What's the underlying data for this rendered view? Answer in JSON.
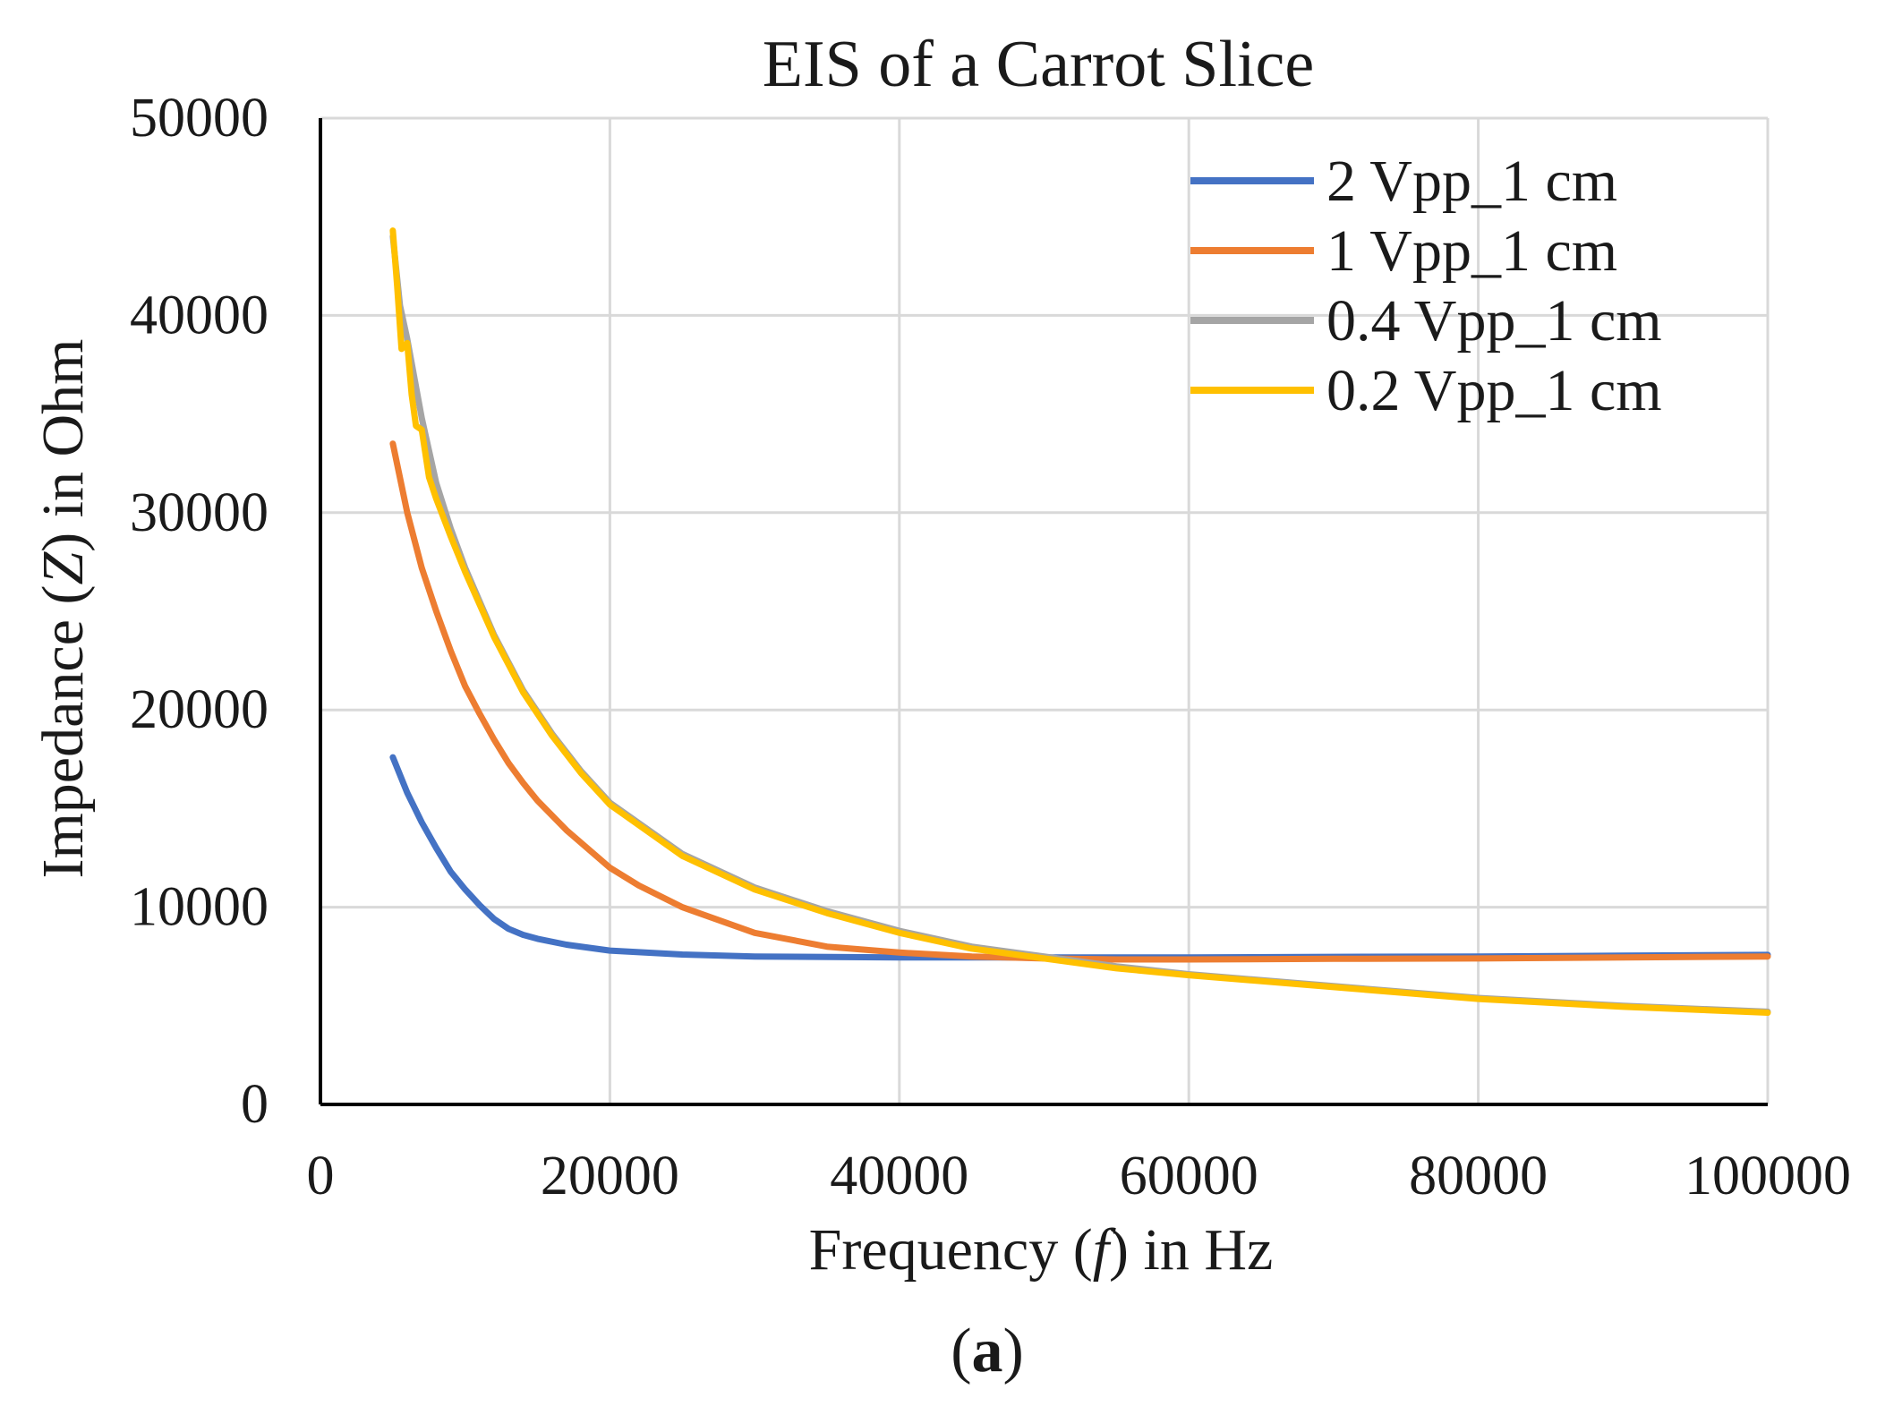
{
  "chart_data": {
    "type": "line",
    "title": "EIS of a Carrot Slice",
    "xlabel_parts": [
      "Frequency (",
      "f",
      ") in Hz"
    ],
    "ylabel_parts": [
      "Impedance (",
      "Z",
      ") in Ohm"
    ],
    "panel_label_parts": [
      "(",
      "a",
      ")"
    ],
    "xlim": [
      0,
      100000
    ],
    "ylim": [
      0,
      50000
    ],
    "x_ticks": [
      0,
      20000,
      40000,
      60000,
      80000,
      100000
    ],
    "x_tick_labels": [
      "0",
      "20000",
      "40000",
      "60000",
      "80000",
      "100000"
    ],
    "y_ticks": [
      0,
      10000,
      20000,
      30000,
      40000,
      50000
    ],
    "y_tick_labels": [
      "0",
      "10000",
      "20000",
      "30000",
      "40000",
      "50000"
    ],
    "grid": true,
    "legend_position": "top-right",
    "series": [
      {
        "name": "2 Vpp_1 cm",
        "color": "#4472c4",
        "x": [
          5000,
          6000,
          7000,
          8000,
          9000,
          10000,
          11000,
          12000,
          13000,
          14000,
          15000,
          17000,
          20000,
          25000,
          30000,
          40000,
          50000,
          60000,
          70000,
          80000,
          90000,
          100000
        ],
        "y": [
          17600,
          15800,
          14300,
          13000,
          11800,
          10900,
          10100,
          9400,
          8900,
          8600,
          8400,
          8100,
          7800,
          7600,
          7500,
          7450,
          7450,
          7450,
          7480,
          7500,
          7540,
          7580
        ]
      },
      {
        "name": "1 Vpp_1 cm",
        "color": "#ed7d31",
        "x": [
          5000,
          6000,
          7000,
          8000,
          9000,
          10000,
          11000,
          12000,
          13000,
          14000,
          15000,
          17000,
          20000,
          22000,
          25000,
          30000,
          35000,
          40000,
          45000,
          50000,
          55000,
          60000,
          70000,
          80000,
          90000,
          100000
        ],
        "y": [
          33500,
          30000,
          27200,
          25000,
          23000,
          21200,
          19800,
          18500,
          17300,
          16300,
          15400,
          13900,
          12000,
          11100,
          10000,
          8700,
          8000,
          7700,
          7500,
          7400,
          7350,
          7350,
          7380,
          7400,
          7450,
          7500
        ]
      },
      {
        "name": "0.4 Vpp_1 cm",
        "color": "#a5a5a5",
        "x": [
          5000,
          5500,
          6000,
          7000,
          8000,
          9000,
          10000,
          12000,
          14000,
          16000,
          18000,
          20000,
          25000,
          30000,
          35000,
          40000,
          45000,
          50000,
          55000,
          60000,
          70000,
          80000,
          90000,
          100000
        ],
        "y": [
          44000,
          40500,
          38800,
          34800,
          31500,
          29200,
          27200,
          23800,
          21000,
          18800,
          16900,
          15300,
          12700,
          11000,
          9800,
          8800,
          8000,
          7500,
          7000,
          6600,
          6000,
          5400,
          5000,
          4700
        ]
      },
      {
        "name": "0.2 Vpp_1 cm",
        "color": "#ffc000",
        "x": [
          5000,
          5300,
          5600,
          6000,
          6300,
          6600,
          7000,
          7500,
          8000,
          9000,
          10000,
          12000,
          14000,
          16000,
          18000,
          20000,
          25000,
          30000,
          35000,
          40000,
          45000,
          50000,
          55000,
          60000,
          70000,
          80000,
          90000,
          100000
        ],
        "y": [
          44300,
          41500,
          38300,
          38600,
          36000,
          34400,
          34200,
          31800,
          30700,
          28800,
          27000,
          23700,
          20900,
          18700,
          16800,
          15200,
          12600,
          10900,
          9700,
          8700,
          7900,
          7400,
          6900,
          6550,
          5950,
          5350,
          4950,
          4650
        ]
      }
    ]
  }
}
